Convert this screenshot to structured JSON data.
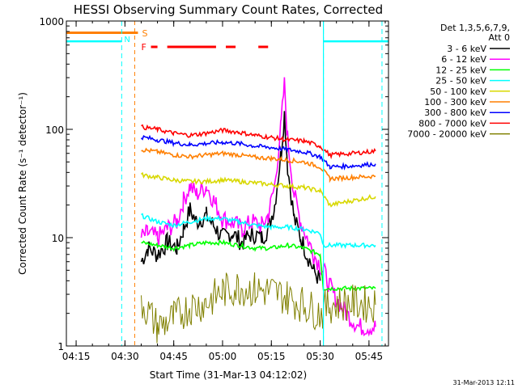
{
  "chart_data": {
    "type": "line",
    "title": "HESSI Observing Summary Count Rates, Corrected",
    "xlabel": "Start Time (31-Mar-13 04:12:02)",
    "ylabel": "Corrected Count Rate (s⁻¹ detector⁻¹)",
    "xlim": [
      "04:12",
      "05:51"
    ],
    "ylim": [
      1,
      1000
    ],
    "yscale": "log",
    "x_ticks": [
      "04:15",
      "04:30",
      "04:45",
      "05:00",
      "05:15",
      "05:30",
      "05:45"
    ],
    "y_ticks": [
      "1",
      "10",
      "100",
      "1000"
    ],
    "legend_title": "Det 1,3,5,6,7,9,",
    "legend_subtitle": "Att 0",
    "legend_position": "right",
    "series": [
      {
        "name": "3 - 6 keV",
        "color": "#000000",
        "points": [
          [
            "04:35",
            6
          ],
          [
            "04:37",
            8
          ],
          [
            "04:40",
            7
          ],
          [
            "04:43",
            9
          ],
          [
            "04:46",
            8
          ],
          [
            "04:48",
            12
          ],
          [
            "04:50",
            18
          ],
          [
            "04:52",
            14
          ],
          [
            "04:55",
            16
          ],
          [
            "04:58",
            12
          ],
          [
            "05:00",
            10
          ],
          [
            "05:03",
            11
          ],
          [
            "05:06",
            9
          ],
          [
            "05:09",
            11
          ],
          [
            "05:12",
            10
          ],
          [
            "05:14",
            12
          ],
          [
            "05:16",
            20
          ],
          [
            "05:18",
            60
          ],
          [
            "05:19",
            140
          ],
          [
            "05:20",
            45
          ],
          [
            "05:22",
            15
          ],
          [
            "05:24",
            10
          ],
          [
            "05:26",
            7
          ],
          [
            "05:28",
            5
          ],
          [
            "05:30",
            4
          ]
        ]
      },
      {
        "name": "6 - 12 keV",
        "color": "#ff00ff",
        "points": [
          [
            "04:35",
            10
          ],
          [
            "04:37",
            11
          ],
          [
            "04:40",
            10
          ],
          [
            "04:43",
            12
          ],
          [
            "04:46",
            14
          ],
          [
            "04:48",
            22
          ],
          [
            "04:50",
            30
          ],
          [
            "04:52",
            25
          ],
          [
            "04:55",
            30
          ],
          [
            "04:58",
            20
          ],
          [
            "05:00",
            15
          ],
          [
            "05:03",
            14
          ],
          [
            "05:06",
            12
          ],
          [
            "05:09",
            14
          ],
          [
            "05:12",
            13
          ],
          [
            "05:14",
            16
          ],
          [
            "05:16",
            30
          ],
          [
            "05:18",
            110
          ],
          [
            "05:19",
            260
          ],
          [
            "05:20",
            80
          ],
          [
            "05:22",
            25
          ],
          [
            "05:24",
            14
          ],
          [
            "05:26",
            10
          ],
          [
            "05:28",
            7
          ],
          [
            "05:31",
            5
          ],
          [
            "05:34",
            3
          ],
          [
            "05:38",
            2
          ],
          [
            "05:42",
            1.5
          ],
          [
            "05:47",
            1.5
          ]
        ]
      },
      {
        "name": "12 - 25 keV",
        "color": "#00ff00",
        "points": [
          [
            "04:35",
            9
          ],
          [
            "04:40",
            8.5
          ],
          [
            "04:45",
            8
          ],
          [
            "04:50",
            8.5
          ],
          [
            "04:55",
            9
          ],
          [
            "05:00",
            9
          ],
          [
            "05:05",
            8.5
          ],
          [
            "05:10",
            8
          ],
          [
            "05:15",
            8
          ],
          [
            "05:20",
            8.5
          ],
          [
            "05:25",
            8
          ],
          [
            "05:30",
            7
          ],
          [
            "05:31",
            3.4
          ],
          [
            "05:40",
            3.4
          ],
          [
            "05:47",
            3.4
          ]
        ]
      },
      {
        "name": "25 - 50 keV",
        "color": "#00ffff",
        "points": [
          [
            "04:35",
            16
          ],
          [
            "04:40",
            14
          ],
          [
            "04:45",
            13
          ],
          [
            "04:50",
            14
          ],
          [
            "04:55",
            15
          ],
          [
            "05:00",
            15
          ],
          [
            "05:05",
            14
          ],
          [
            "05:10",
            13
          ],
          [
            "05:15",
            12.5
          ],
          [
            "05:20",
            12.5
          ],
          [
            "05:25",
            12
          ],
          [
            "05:30",
            11
          ],
          [
            "05:31",
            8.5
          ],
          [
            "05:40",
            8.5
          ],
          [
            "05:47",
            8.5
          ]
        ]
      },
      {
        "name": "50 - 100 keV",
        "color": "#d8d800",
        "points": [
          [
            "04:35",
            38
          ],
          [
            "04:40",
            36
          ],
          [
            "04:45",
            34
          ],
          [
            "04:50",
            33
          ],
          [
            "04:55",
            33
          ],
          [
            "05:00",
            34
          ],
          [
            "05:05",
            33
          ],
          [
            "05:10",
            32
          ],
          [
            "05:15",
            31
          ],
          [
            "05:20",
            30
          ],
          [
            "05:25",
            29
          ],
          [
            "05:30",
            27
          ],
          [
            "05:33",
            20
          ],
          [
            "05:40",
            22
          ],
          [
            "05:47",
            24
          ]
        ]
      },
      {
        "name": "100 - 300 keV",
        "color": "#ff7f00",
        "points": [
          [
            "04:35",
            65
          ],
          [
            "04:40",
            62
          ],
          [
            "04:45",
            58
          ],
          [
            "04:50",
            56
          ],
          [
            "04:55",
            58
          ],
          [
            "05:00",
            60
          ],
          [
            "05:05",
            58
          ],
          [
            "05:10",
            55
          ],
          [
            "05:15",
            54
          ],
          [
            "05:20",
            52
          ],
          [
            "05:25",
            50
          ],
          [
            "05:30",
            45
          ],
          [
            "05:33",
            35
          ],
          [
            "05:40",
            36
          ],
          [
            "05:47",
            37
          ]
        ]
      },
      {
        "name": "300 - 800 keV",
        "color": "#0000ff",
        "points": [
          [
            "04:35",
            85
          ],
          [
            "04:40",
            80
          ],
          [
            "04:45",
            75
          ],
          [
            "04:50",
            72
          ],
          [
            "04:55",
            74
          ],
          [
            "05:00",
            76
          ],
          [
            "05:05",
            74
          ],
          [
            "05:10",
            70
          ],
          [
            "05:15",
            68
          ],
          [
            "05:20",
            65
          ],
          [
            "05:25",
            62
          ],
          [
            "05:30",
            56
          ],
          [
            "05:33",
            45
          ],
          [
            "05:40",
            46
          ],
          [
            "05:47",
            48
          ]
        ]
      },
      {
        "name": "800 - 7000 keV",
        "color": "#ff0000",
        "points": [
          [
            "04:35",
            105
          ],
          [
            "04:40",
            100
          ],
          [
            "04:45",
            92
          ],
          [
            "04:50",
            88
          ],
          [
            "04:55",
            92
          ],
          [
            "05:00",
            98
          ],
          [
            "05:05",
            94
          ],
          [
            "05:10",
            88
          ],
          [
            "05:15",
            84
          ],
          [
            "05:20",
            80
          ],
          [
            "05:25",
            78
          ],
          [
            "05:30",
            70
          ],
          [
            "05:33",
            58
          ],
          [
            "05:40",
            60
          ],
          [
            "05:47",
            63
          ]
        ]
      },
      {
        "name": "7000 - 20000 keV",
        "color": "#808000",
        "points": [
          [
            "04:35",
            2.6
          ],
          [
            "04:40",
            1.5
          ],
          [
            "04:45",
            1.8
          ],
          [
            "04:50",
            2.3
          ],
          [
            "04:55",
            2.5
          ],
          [
            "05:00",
            3.2
          ],
          [
            "05:05",
            3.5
          ],
          [
            "05:10",
            3.3
          ],
          [
            "05:15",
            3.2
          ],
          [
            "05:20",
            2.8
          ],
          [
            "05:25",
            2.4
          ],
          [
            "05:30",
            2
          ],
          [
            "05:33",
            2.4
          ],
          [
            "05:40",
            2.5
          ],
          [
            "05:47",
            2.4
          ]
        ]
      }
    ],
    "annotations": {
      "saa_label": "S",
      "night_label": "N",
      "flare_label": "F",
      "saa_spans": [
        [
          "04:12",
          "04:34"
        ]
      ],
      "flare_spans": [
        [
          "04:38",
          "04:40"
        ],
        [
          "04:43",
          "04:58"
        ],
        [
          "05:01",
          "05:04"
        ],
        [
          "05:11",
          "05:14"
        ]
      ],
      "cyan_level_spans": [
        [
          "04:12",
          "04:29"
        ],
        [
          "05:31",
          "05:51"
        ]
      ],
      "cyan_level": 650,
      "saa_level": 780,
      "cyan_dashed_lines": [
        "04:29",
        "05:31",
        "05:49"
      ],
      "orange_dashed_lines": [
        "04:33"
      ],
      "cyan_solid_lines": [
        "05:31"
      ]
    },
    "footer_date": "31-Mar-2013 12:11"
  }
}
